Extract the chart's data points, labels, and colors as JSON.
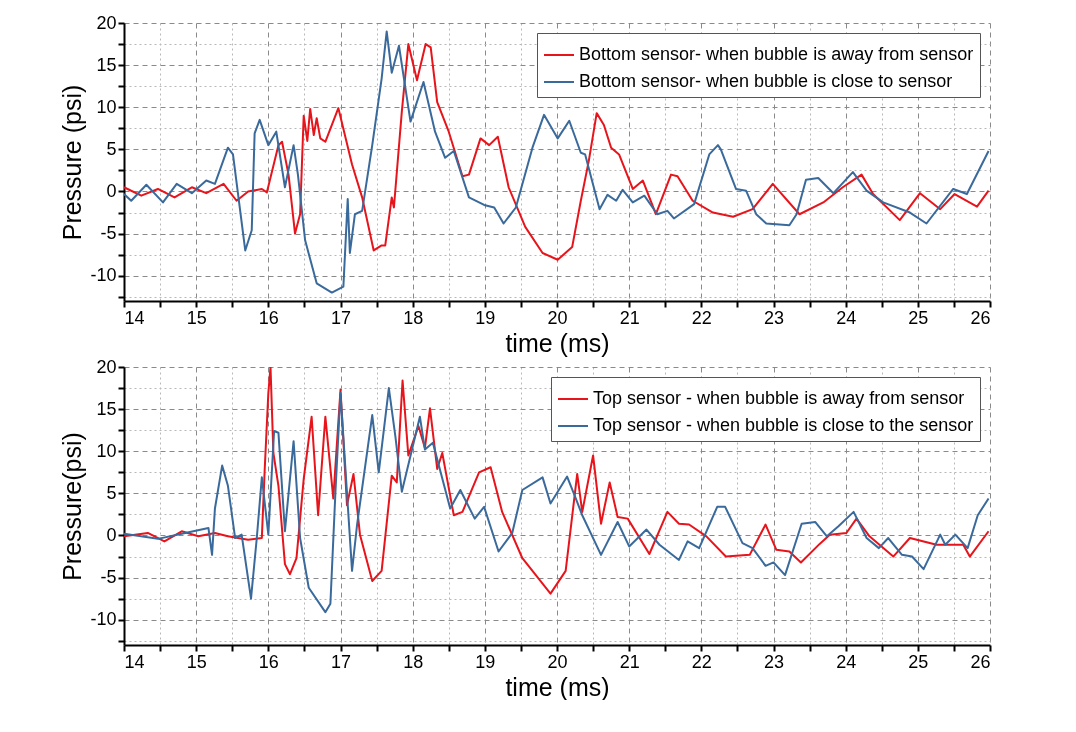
{
  "chart_data": [
    {
      "type": "line",
      "xlabel": "time (ms)",
      "ylabel": "Pressure (psi)",
      "xlim": [
        14,
        26
      ],
      "ylim": [
        -13,
        20
      ],
      "xticks": [
        14,
        {
          "value": 14.5,
          "label": null
        },
        15,
        {
          "value": 15.5,
          "label": null
        },
        16,
        {
          "value": 16.5,
          "label": null
        },
        17,
        {
          "value": 17.5,
          "label": null
        },
        18,
        {
          "value": 18.5,
          "label": null
        },
        19,
        {
          "value": 19.5,
          "label": null
        },
        20,
        {
          "value": 20.5,
          "label": null
        },
        21,
        {
          "value": 21.5,
          "label": null
        },
        22,
        {
          "value": 22.5,
          "label": null
        },
        23,
        {
          "value": 23.5,
          "label": null
        },
        24,
        {
          "value": 24.5,
          "label": null
        },
        25,
        {
          "value": 25.5,
          "label": null
        },
        26
      ],
      "yticks": [
        {
          "value": -12.5,
          "label": null
        },
        -10,
        {
          "value": -7.5,
          "label": null
        },
        -5,
        {
          "value": -2.5,
          "label": null
        },
        0,
        {
          "value": 2.5,
          "label": null
        },
        5,
        {
          "value": 7.5,
          "label": null
        },
        10,
        {
          "value": 12.5,
          "label": null
        },
        15,
        {
          "value": 17.5,
          "label": null
        },
        20
      ],
      "grid": true,
      "legend": "top right",
      "series": [
        {
          "name": "Bottom sensor- when bubble is away from sensor",
          "color": "#e8141b",
          "x": [
            14.0,
            14.24,
            14.47,
            14.7,
            14.94,
            15.14,
            15.38,
            15.56,
            15.72,
            15.91,
            15.98,
            16.14,
            16.19,
            16.28,
            16.37,
            16.44,
            16.49,
            16.54,
            16.58,
            16.63,
            16.67,
            16.72,
            16.79,
            16.97,
            17.16,
            17.3,
            17.46,
            17.57,
            17.62,
            17.71,
            17.74,
            17.85,
            17.94,
            18.06,
            18.18,
            18.25,
            18.34,
            18.5,
            18.69,
            18.78,
            18.94,
            19.06,
            19.18,
            19.33,
            19.56,
            19.8,
            20.01,
            20.21,
            20.33,
            20.44,
            20.55,
            20.65,
            20.75,
            20.86,
            21.05,
            21.19,
            21.37,
            21.58,
            21.67,
            21.88,
            22.16,
            22.44,
            22.71,
            22.99,
            23.36,
            23.69,
            23.96,
            24.22,
            24.38,
            24.75,
            25.03,
            25.31,
            25.51,
            25.82,
            25.98
          ],
          "values": [
            0.5,
            -0.5,
            0.3,
            -0.7,
            0.5,
            -0.2,
            0.9,
            -1.1,
            0,
            0.3,
            -0.1,
            5.5,
            5.9,
            2,
            -5,
            -2.7,
            9,
            6,
            9.8,
            6.7,
            8.7,
            6.3,
            5.9,
            9.9,
            3.2,
            -0.7,
            -7,
            -6.4,
            -6.4,
            -0.7,
            -1.9,
            9.5,
            17.5,
            13.2,
            17.5,
            17.1,
            10.6,
            7.1,
            1.8,
            2,
            6.3,
            5.5,
            6.5,
            0.5,
            -4.2,
            -7.3,
            -8.1,
            -6.6,
            -1.1,
            3.6,
            9.3,
            7.9,
            5.2,
            4.4,
            0.3,
            1.3,
            -2.7,
            2.0,
            1.8,
            -1.1,
            -2.5,
            -3.0,
            -2.1,
            0.9,
            -2.7,
            -1.3,
            0.5,
            2.0,
            -0.3,
            -3.4,
            -0.2,
            -2.1,
            -0.3,
            -1.8,
            0.1
          ]
        },
        {
          "name": "Bottom sensor- when bubble is close to sensor",
          "color": "#3a6a9b",
          "x": [
            14.0,
            14.1,
            14.31,
            14.54,
            14.73,
            14.94,
            15.14,
            15.26,
            15.44,
            15.51,
            15.68,
            15.77,
            15.81,
            15.88,
            16.0,
            16.11,
            16.23,
            16.35,
            16.41,
            16.51,
            16.67,
            16.88,
            17.04,
            17.1,
            17.13,
            17.2,
            17.3,
            17.44,
            17.57,
            17.64,
            17.71,
            17.81,
            17.97,
            18.15,
            18.31,
            18.45,
            18.57,
            18.78,
            18.99,
            19.13,
            19.26,
            19.43,
            19.66,
            19.82,
            20.01,
            20.17,
            20.33,
            20.39,
            20.59,
            20.7,
            20.82,
            20.91,
            21.05,
            21.21,
            21.39,
            21.53,
            21.62,
            21.9,
            22.11,
            22.23,
            22.27,
            22.48,
            22.62,
            22.76,
            22.9,
            23.22,
            23.32,
            23.45,
            23.62,
            23.83,
            24.1,
            24.29,
            24.52,
            24.89,
            25.12,
            25.49,
            25.68,
            25.98
          ],
          "values": [
            -0.3,
            -1.1,
            0.8,
            -1.3,
            0.9,
            -0.2,
            1.3,
            0.9,
            5.2,
            4.4,
            -7,
            -4.6,
            6.9,
            8.5,
            5.5,
            7.1,
            0.5,
            5.5,
            2,
            -5.8,
            -10.9,
            -12.0,
            -11.3,
            -0.9,
            -7.3,
            -2.7,
            -2.3,
            5.5,
            13.4,
            19,
            14.1,
            17.3,
            8.3,
            13,
            7.1,
            4,
            4.8,
            -0.7,
            -1.6,
            -1.9,
            -3.8,
            -1.9,
            5.2,
            9.1,
            6.3,
            8.4,
            4.6,
            4.4,
            -2.1,
            -0.4,
            -1.1,
            0.2,
            -1.3,
            -0.5,
            -2.7,
            -2.3,
            -3.2,
            -1.5,
            4.4,
            5.5,
            5.0,
            0.3,
            0.1,
            -2.7,
            -3.8,
            -4,
            -2.7,
            1.4,
            1.6,
            -0.2,
            2.3,
            0.1,
            -1.3,
            -2.5,
            -3.8,
            0.3,
            -0.3,
            4.8
          ]
        }
      ]
    },
    {
      "type": "line",
      "xlabel": "time (ms)",
      "ylabel": "Pressure(psi)",
      "xlim": [
        14,
        26
      ],
      "ylim": [
        -13,
        20
      ],
      "xticks": [
        14,
        {
          "value": 14.5,
          "label": null
        },
        15,
        {
          "value": 15.5,
          "label": null
        },
        16,
        {
          "value": 16.5,
          "label": null
        },
        17,
        {
          "value": 17.5,
          "label": null
        },
        18,
        {
          "value": 18.5,
          "label": null
        },
        19,
        {
          "value": 19.5,
          "label": null
        },
        20,
        {
          "value": 20.5,
          "label": null
        },
        21,
        {
          "value": 21.5,
          "label": null
        },
        22,
        {
          "value": 22.5,
          "label": null
        },
        23,
        {
          "value": 23.5,
          "label": null
        },
        24,
        {
          "value": 24.5,
          "label": null
        },
        25,
        {
          "value": 25.5,
          "label": null
        },
        26
      ],
      "yticks": [
        {
          "value": -12.5,
          "label": null
        },
        -10,
        {
          "value": -7.5,
          "label": null
        },
        -5,
        {
          "value": -2.5,
          "label": null
        },
        0,
        {
          "value": 2.5,
          "label": null
        },
        5,
        {
          "value": 7.5,
          "label": null
        },
        10,
        {
          "value": 12.5,
          "label": null
        },
        15,
        {
          "value": 17.5,
          "label": null
        },
        20
      ],
      "grid": true,
      "legend": "top right",
      "series": [
        {
          "name": "Top sensor - when bubble is away from sensor",
          "color": "#e8141b",
          "x": [
            14.0,
            14.33,
            14.56,
            14.8,
            15.03,
            15.26,
            15.44,
            15.72,
            15.91,
            15.95,
            16.0,
            16.03,
            16.07,
            16.14,
            16.23,
            16.3,
            16.39,
            16.49,
            16.6,
            16.69,
            16.79,
            16.9,
            17.0,
            17.09,
            17.18,
            17.27,
            17.44,
            17.57,
            17.71,
            17.78,
            17.86,
            17.94,
            18.08,
            18.17,
            18.24,
            18.34,
            18.41,
            18.57,
            18.69,
            18.92,
            19.08,
            19.24,
            19.52,
            19.91,
            20.12,
            20.28,
            20.35,
            20.5,
            20.61,
            20.73,
            20.84,
            20.98,
            21.28,
            21.53,
            21.69,
            21.83,
            22.07,
            22.34,
            22.67,
            22.89,
            23.04,
            23.22,
            23.38,
            23.64,
            23.78,
            24.01,
            24.15,
            24.33,
            24.66,
            24.89,
            25.26,
            25.63,
            25.72,
            25.98
          ],
          "values": [
            -0.1,
            0.3,
            -0.7,
            0.5,
            -0.1,
            0.3,
            -0.1,
            -0.5,
            -0.3,
            7.9,
            16.9,
            20,
            9.8,
            5.9,
            -3.4,
            -4.6,
            -2.7,
            6.7,
            14.1,
            2.4,
            14.1,
            4.4,
            17.3,
            3.6,
            7.3,
            0.1,
            -5.4,
            -4.2,
            7.1,
            6.3,
            18.4,
            9.5,
            13,
            10.4,
            15.1,
            7.9,
            9.8,
            2.4,
            2.8,
            7.5,
            8.1,
            2.8,
            -2.7,
            -6.9,
            -4.2,
            7.3,
            2.8,
            9.5,
            1.4,
            6.3,
            2.2,
            2.0,
            -2.2,
            2.8,
            1.4,
            1.3,
            -0.1,
            -2.5,
            -2.3,
            1.3,
            -1.7,
            -1.9,
            -3.2,
            -1.0,
            0.1,
            0.3,
            2.0,
            -0.1,
            -2.5,
            -0.3,
            -1.1,
            -1.1,
            -2.5,
            0.5
          ]
        },
        {
          "name": "Top sensor - when bubble is close to the sensor",
          "color": "#3a6a9b",
          "x": [
            14.0,
            14.47,
            14.8,
            15.17,
            15.22,
            15.26,
            15.36,
            15.44,
            15.54,
            15.63,
            15.76,
            15.84,
            15.91,
            16.0,
            16.08,
            16.14,
            16.23,
            16.35,
            16.44,
            16.56,
            16.79,
            16.86,
            16.93,
            17.0,
            17.16,
            17.23,
            17.44,
            17.53,
            17.67,
            17.76,
            17.85,
            18.1,
            18.17,
            18.28,
            18.52,
            18.66,
            18.86,
            18.99,
            19.19,
            19.38,
            19.52,
            19.8,
            19.91,
            20.14,
            20.26,
            20.35,
            20.61,
            20.84,
            21.0,
            21.24,
            21.42,
            21.69,
            21.81,
            21.97,
            22.22,
            22.33,
            22.57,
            22.71,
            22.89,
            23.0,
            23.16,
            23.39,
            23.58,
            23.74,
            23.9,
            24.11,
            24.29,
            24.46,
            24.59,
            24.78,
            24.92,
            25.08,
            25.31,
            25.38,
            25.52,
            25.69,
            25.83,
            25.98
          ],
          "values": [
            0.2,
            -0.4,
            0.2,
            0.9,
            -2.3,
            3.2,
            8.3,
            5.9,
            -0.3,
            0.1,
            -7.5,
            -0.3,
            6.9,
            0.1,
            12.4,
            12.2,
            0.5,
            11.2,
            -0.3,
            -6.2,
            -9.1,
            -8.1,
            5.2,
            16.9,
            -4.2,
            1.3,
            14.3,
            7.5,
            17.5,
            11.8,
            5.2,
            14.1,
            10.2,
            11,
            3.2,
            5.4,
            2.0,
            3.4,
            -1.9,
            0.3,
            5.4,
            6.9,
            3.8,
            7.0,
            4.4,
            2.4,
            -2.3,
            1.6,
            -1.3,
            0.7,
            -1.1,
            -2.9,
            -0.7,
            -1.5,
            3.4,
            3.4,
            -0.9,
            -1.5,
            -3.6,
            -3.2,
            -4.7,
            1.4,
            1.6,
            -0.1,
            1.1,
            2.8,
            -0.3,
            -1.5,
            -0.3,
            -2.3,
            -2.5,
            -4.0,
            0.1,
            -1.1,
            0.1,
            -1.5,
            2.4,
            4.4
          ]
        }
      ]
    }
  ]
}
